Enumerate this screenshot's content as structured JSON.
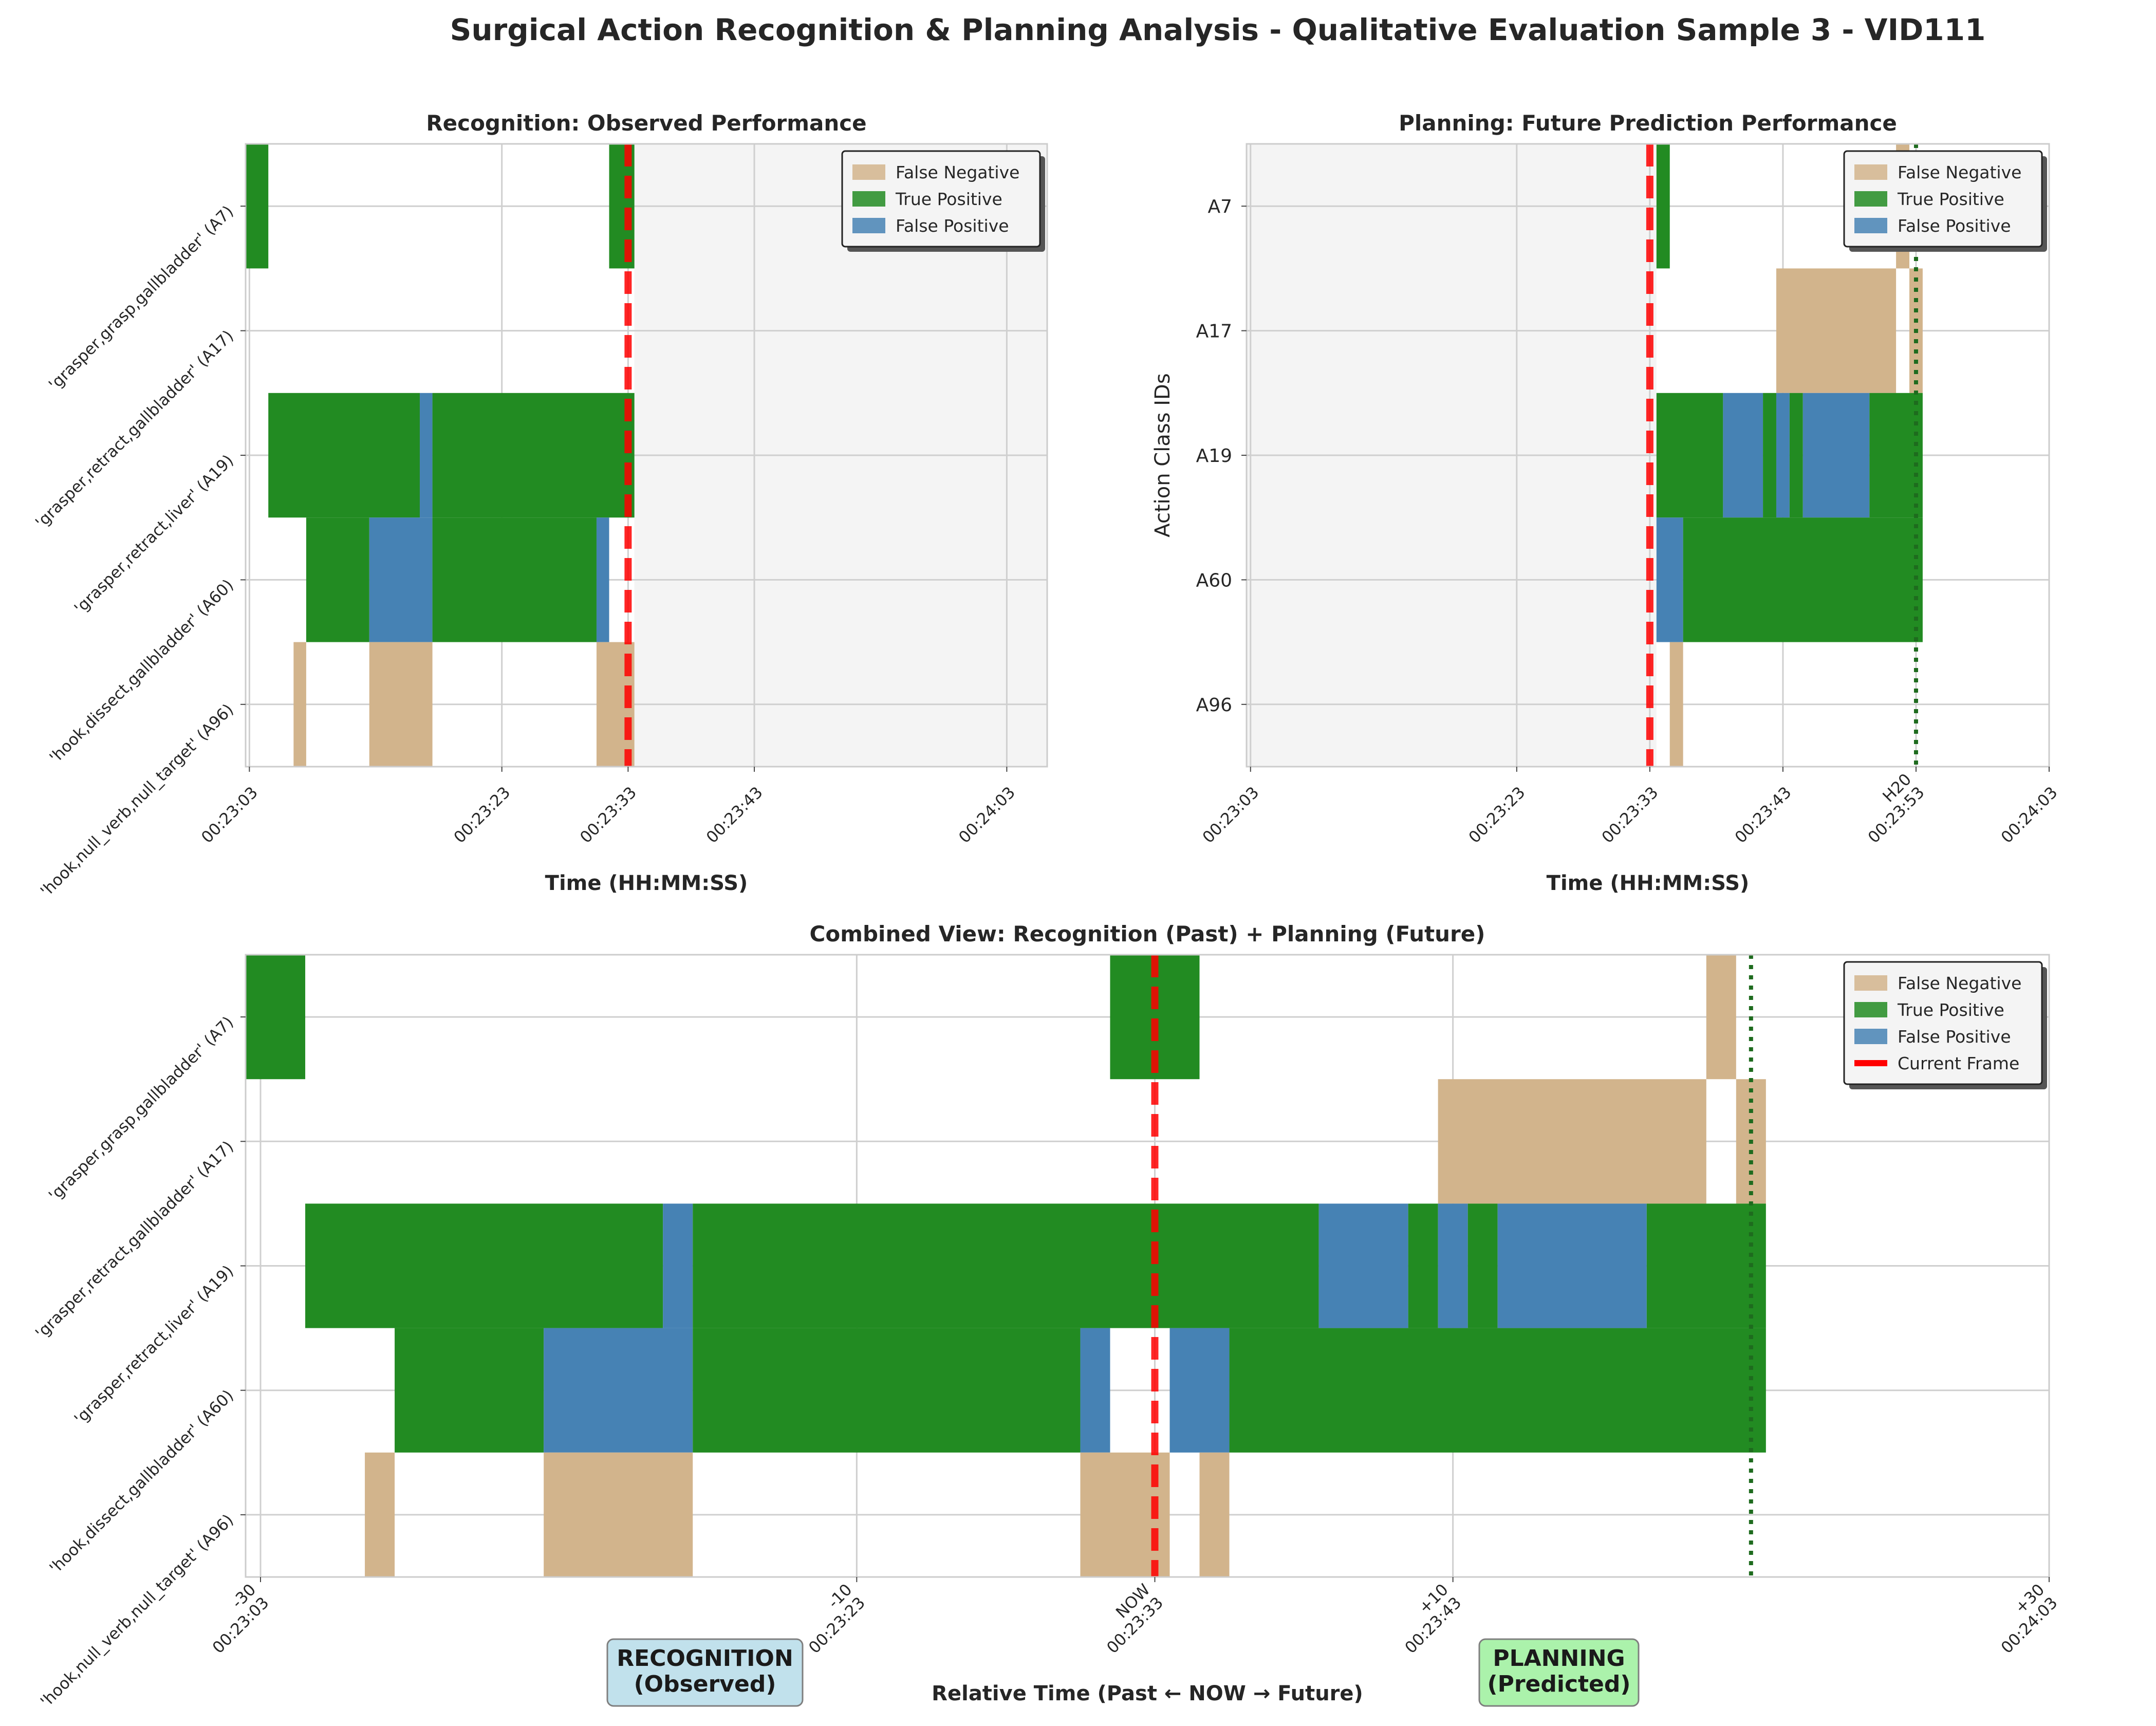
{
  "figure": {
    "title": "Surgical Action Recognition & Planning Analysis - Qualitative Evaluation Sample 3 - VID111"
  },
  "colors": {
    "fn": "#D2B48C",
    "tp": "#228B22",
    "fp": "#4682B4",
    "current": "#FF0000",
    "horizon": "#1E6B1E",
    "future_bg": "#F4F4F4",
    "recognition_box": "#ADD8E6",
    "planning_box": "#90EE90"
  },
  "legend": {
    "fn": "False Negative",
    "tp": "True Positive",
    "fp": "False Positive",
    "current": "Current Frame"
  },
  "chart_data": [
    {
      "type": "timeline",
      "title": "Recognition: Observed Performance",
      "xlabel": "Time (HH:MM:SS)",
      "ylabel": "",
      "xlim": [
        -30.3,
        33.2
      ],
      "x_ticks": [
        {
          "x": -30,
          "label": "00:23:03"
        },
        {
          "x": -10,
          "label": "00:23:23"
        },
        {
          "x": 0,
          "label": "00:23:33"
        },
        {
          "x": 10,
          "label": "00:23:43"
        },
        {
          "x": 30,
          "label": "00:24:03"
        }
      ],
      "rows": [
        "A7",
        "A17",
        "A19",
        "A60",
        "A96"
      ],
      "row_labels": [
        "'grasper,grasp,gallbladder' (A7)",
        "'grasper,retract,gallbladder' (A17)",
        "'grasper,retract,liver' (A19)",
        "'hook,dissect,gallbladder' (A60)",
        "'hook,null_verb,null_target' (A96)"
      ],
      "current_frame": 0,
      "future_shading": [
        0.5,
        33.2
      ],
      "legend_position": "upper right",
      "segments": [
        {
          "row": "A7",
          "type": "tp",
          "start": -30.5,
          "end": -28.5
        },
        {
          "row": "A7",
          "type": "tp",
          "start": -1.5,
          "end": 0.5
        },
        {
          "row": "A19",
          "type": "tp",
          "start": -28.5,
          "end": -16.5
        },
        {
          "row": "A19",
          "type": "fp",
          "start": -16.5,
          "end": -15.5
        },
        {
          "row": "A19",
          "type": "tp",
          "start": -15.5,
          "end": 0.5
        },
        {
          "row": "A60",
          "type": "tp",
          "start": -25.5,
          "end": -20.5
        },
        {
          "row": "A60",
          "type": "fp",
          "start": -20.5,
          "end": -15.5
        },
        {
          "row": "A60",
          "type": "tp",
          "start": -15.5,
          "end": -2.5
        },
        {
          "row": "A60",
          "type": "fp",
          "start": -2.5,
          "end": -1.5
        },
        {
          "row": "A96",
          "type": "fn",
          "start": -26.5,
          "end": -25.5
        },
        {
          "row": "A96",
          "type": "fn",
          "start": -20.5,
          "end": -15.5
        },
        {
          "row": "A96",
          "type": "fn",
          "start": -2.5,
          "end": 0.5
        }
      ]
    },
    {
      "type": "timeline",
      "title": "Planning: Future Prediction Performance",
      "xlabel": "Time (HH:MM:SS)",
      "ylabel": "Action Class IDs",
      "xlim": [
        -30.3,
        30
      ],
      "x_ticks": [
        {
          "x": -30,
          "label": "00:23:03"
        },
        {
          "x": -10,
          "label": "00:23:23"
        },
        {
          "x": 0,
          "label": "00:23:33"
        },
        {
          "x": 10,
          "label": "00:23:43"
        },
        {
          "x": 20,
          "label": "H20\n00:23:53"
        },
        {
          "x": 30,
          "label": "00:24:03"
        }
      ],
      "rows": [
        "A7",
        "A17",
        "A19",
        "A60",
        "A96"
      ],
      "row_labels": [
        "A7",
        "A17",
        "A19",
        "A60",
        "A96"
      ],
      "current_frame": 0,
      "horizon": 20,
      "past_shading": [
        -30.3,
        0.5
      ],
      "legend_position": "upper right",
      "segments": [
        {
          "row": "A7",
          "type": "tp",
          "start": 0.5,
          "end": 1.5
        },
        {
          "row": "A7",
          "type": "fn",
          "start": 18.5,
          "end": 19.5
        },
        {
          "row": "A17",
          "type": "fn",
          "start": 9.5,
          "end": 18.5
        },
        {
          "row": "A17",
          "type": "fn",
          "start": 19.5,
          "end": 20.5
        },
        {
          "row": "A19",
          "type": "tp",
          "start": 0.5,
          "end": 5.5
        },
        {
          "row": "A19",
          "type": "fp",
          "start": 5.5,
          "end": 8.5
        },
        {
          "row": "A19",
          "type": "tp",
          "start": 8.5,
          "end": 9.5
        },
        {
          "row": "A19",
          "type": "fp",
          "start": 9.5,
          "end": 10.5
        },
        {
          "row": "A19",
          "type": "tp",
          "start": 10.5,
          "end": 11.5
        },
        {
          "row": "A19",
          "type": "fp",
          "start": 11.5,
          "end": 16.5
        },
        {
          "row": "A19",
          "type": "tp",
          "start": 16.5,
          "end": 20.5
        },
        {
          "row": "A60",
          "type": "fp",
          "start": 0.5,
          "end": 2.5
        },
        {
          "row": "A60",
          "type": "tp",
          "start": 2.5,
          "end": 20.5
        },
        {
          "row": "A96",
          "type": "fn",
          "start": 1.5,
          "end": 2.5
        }
      ]
    },
    {
      "type": "timeline",
      "title": "Combined View: Recognition (Past) + Planning (Future)",
      "xlabel": "Relative Time (Past ← NOW → Future)",
      "ylabel": "",
      "xlim": [
        -30.5,
        30
      ],
      "x_ticks": [
        {
          "x": -30,
          "label": "-30\n00:23:03"
        },
        {
          "x": -10,
          "label": "-10\n00:23:23"
        },
        {
          "x": 0,
          "label": "NOW\n00:23:33"
        },
        {
          "x": 10,
          "label": "+10\n00:23:43"
        },
        {
          "x": 30,
          "label": "+30\n00:24:03"
        }
      ],
      "rows": [
        "A7",
        "A17",
        "A19",
        "A60",
        "A96"
      ],
      "row_labels": [
        "'grasper,grasp,gallbladder' (A7)",
        "'grasper,retract,gallbladder' (A17)",
        "'grasper,retract,liver' (A19)",
        "'hook,dissect,gallbladder' (A60)",
        "'hook,null_verb,null_target' (A96)"
      ],
      "current_frame": 0,
      "horizon": 20,
      "legend_position": "upper right",
      "region_labels": {
        "recognition": "RECOGNITION\n(Observed)",
        "planning": "PLANNING\n(Predicted)"
      },
      "segments": [
        {
          "row": "A7",
          "type": "tp",
          "start": -30.5,
          "end": -28.5
        },
        {
          "row": "A7",
          "type": "tp",
          "start": -1.5,
          "end": 1.5
        },
        {
          "row": "A7",
          "type": "fn",
          "start": 18.5,
          "end": 19.5
        },
        {
          "row": "A17",
          "type": "fn",
          "start": 9.5,
          "end": 18.5
        },
        {
          "row": "A17",
          "type": "fn",
          "start": 19.5,
          "end": 20.5
        },
        {
          "row": "A19",
          "type": "tp",
          "start": -28.5,
          "end": -16.5
        },
        {
          "row": "A19",
          "type": "fp",
          "start": -16.5,
          "end": -15.5
        },
        {
          "row": "A19",
          "type": "tp",
          "start": -15.5,
          "end": 5.5
        },
        {
          "row": "A19",
          "type": "fp",
          "start": 5.5,
          "end": 8.5
        },
        {
          "row": "A19",
          "type": "tp",
          "start": 8.5,
          "end": 9.5
        },
        {
          "row": "A19",
          "type": "fp",
          "start": 9.5,
          "end": 10.5
        },
        {
          "row": "A19",
          "type": "tp",
          "start": 10.5,
          "end": 11.5
        },
        {
          "row": "A19",
          "type": "fp",
          "start": 11.5,
          "end": 16.5
        },
        {
          "row": "A19",
          "type": "tp",
          "start": 16.5,
          "end": 20.5
        },
        {
          "row": "A60",
          "type": "tp",
          "start": -25.5,
          "end": -20.5
        },
        {
          "row": "A60",
          "type": "fp",
          "start": -20.5,
          "end": -15.5
        },
        {
          "row": "A60",
          "type": "tp",
          "start": -15.5,
          "end": -2.5
        },
        {
          "row": "A60",
          "type": "fp",
          "start": -2.5,
          "end": -1.5
        },
        {
          "row": "A60",
          "type": "fp",
          "start": 0.5,
          "end": 2.5
        },
        {
          "row": "A60",
          "type": "tp",
          "start": 2.5,
          "end": 20.5
        },
        {
          "row": "A96",
          "type": "fn",
          "start": -26.5,
          "end": -25.5
        },
        {
          "row": "A96",
          "type": "fn",
          "start": -20.5,
          "end": -15.5
        },
        {
          "row": "A96",
          "type": "fn",
          "start": -2.5,
          "end": 0.5
        },
        {
          "row": "A96",
          "type": "fn",
          "start": 1.5,
          "end": 2.5
        }
      ]
    }
  ]
}
